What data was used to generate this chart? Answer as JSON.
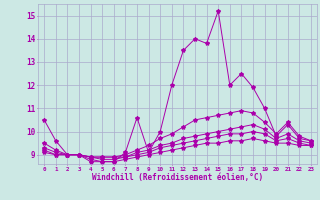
{
  "xlabel": "Windchill (Refroidissement éolien,°C)",
  "background_color": "#cce8e4",
  "line_color": "#aa00aa",
  "grid_color": "#aaaacc",
  "x": [
    0,
    1,
    2,
    3,
    4,
    5,
    6,
    7,
    8,
    9,
    10,
    11,
    12,
    13,
    14,
    15,
    16,
    17,
    18,
    19,
    20,
    21,
    22,
    23
  ],
  "series1": [
    10.5,
    9.6,
    9.0,
    9.0,
    8.7,
    8.7,
    8.7,
    9.1,
    10.6,
    9.1,
    10.0,
    12.0,
    13.5,
    14.0,
    13.8,
    15.2,
    12.0,
    12.5,
    11.9,
    11.0,
    9.8,
    10.3,
    9.7,
    9.6
  ],
  "series2": [
    9.5,
    9.2,
    9.0,
    9.0,
    8.9,
    8.9,
    8.9,
    9.0,
    9.2,
    9.4,
    9.7,
    9.9,
    10.2,
    10.5,
    10.6,
    10.7,
    10.8,
    10.9,
    10.8,
    10.4,
    9.9,
    10.4,
    9.8,
    9.6
  ],
  "series3": [
    9.3,
    9.1,
    9.0,
    9.0,
    8.9,
    8.9,
    8.9,
    8.9,
    9.1,
    9.2,
    9.4,
    9.5,
    9.7,
    9.8,
    9.9,
    10.0,
    10.1,
    10.2,
    10.3,
    10.1,
    9.7,
    9.9,
    9.6,
    9.5
  ],
  "series4": [
    9.2,
    9.0,
    9.0,
    9.0,
    8.9,
    8.8,
    8.8,
    8.9,
    9.0,
    9.1,
    9.3,
    9.4,
    9.5,
    9.6,
    9.7,
    9.8,
    9.9,
    9.9,
    10.0,
    9.9,
    9.6,
    9.7,
    9.5,
    9.4
  ],
  "series5": [
    9.1,
    9.0,
    9.0,
    9.0,
    8.8,
    8.7,
    8.7,
    8.8,
    8.9,
    9.0,
    9.1,
    9.2,
    9.3,
    9.4,
    9.5,
    9.5,
    9.6,
    9.6,
    9.7,
    9.6,
    9.5,
    9.5,
    9.4,
    9.4
  ],
  "ylim": [
    8.6,
    15.5
  ],
  "yticks": [
    9,
    10,
    11,
    12,
    13,
    14,
    15
  ],
  "xticks": [
    0,
    1,
    2,
    3,
    4,
    5,
    6,
    7,
    8,
    9,
    10,
    11,
    12,
    13,
    14,
    15,
    16,
    17,
    18,
    19,
    20,
    21,
    22,
    23
  ]
}
